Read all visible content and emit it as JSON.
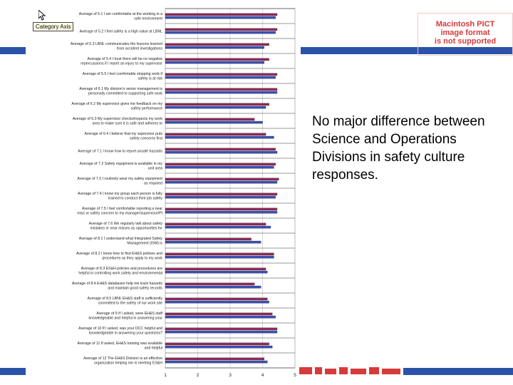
{
  "slide": {
    "callout_text": "No major difference between Science and Operations Divisions in safety culture responses.",
    "pict_notice": {
      "line1": "Macintosh PICT",
      "line2": "image format",
      "line3": "is not supported"
    },
    "tooltip": "Category Axis",
    "colors": {
      "band": "#2a52a8",
      "series_a": "#8e2a5a",
      "series_b": "#3a4fb5",
      "grid": "#c8c8c8",
      "pict_text": "#d63a3a"
    }
  },
  "chart_data": {
    "type": "bar",
    "orientation": "horizontal",
    "title": "",
    "xlabel": "",
    "ylabel": "",
    "xlim": [
      1,
      5
    ],
    "x_ticks": [
      "1",
      "2",
      "3",
      "4",
      "5"
    ],
    "grid": true,
    "legend": "none",
    "categories": [
      "Average of 5.1 I am comfortable at the working in a safe environment",
      "Average of 5.2 I feel safety is a high value at LBNL",
      "Average of 5.3 LBNL communicates the lessons learned from accident investigations",
      "Average of 5.4 I trust there will be no negative repercussions if I report an injury to my supervisor",
      "Average of 5.5 I feel comfortable stopping work if safety is at risk",
      "Average of 6.1 My division's senior management is personally committed to supporting safe work practices",
      "Average of 6.2 My supervisor gives me feedback on my safety performance",
      "Average of 6.3 My supervisor checks/inspects my work area to make sure it is safe and adheres to environmental",
      "Average of 6.4 I believe that my supervisor puts safety concerns first",
      "Average of 7.1 I know how to report unsafe hazards",
      "Average of 7.2 Safety equipment is available in my unit area",
      "Average of 7.3 I routinely wear my safety equipment as required",
      "Average of 7.4 I know my group each person is fully trained to conduct their job safely",
      "Average of 7.5 I feel comfortable reporting a near miss or safety concern to my manager/supervisor/PI",
      "Average of 7.6 We regularly talk about safety mistakes or near misses as opportunities for learning, not blame",
      "Average of 8.1 I understand what Integrated Safety Management (ISM) is",
      "Average of 8.2 I know how to find EH&S policies and procedures as they apply to my work",
      "Average of 8.3 ES&H policies and procedures are helpful in controlling work safety and environmental hazards",
      "Average of 8.4 EH&S databases help me track hazards and maintain good safety records",
      "Average of 8.5 LBNL EH&S staff is sufficiently committed to the safety of our work site",
      "Average of 9 If I asked, were EH&S staff knowledgeable and helpful in answering your questions?",
      "Average of 10 If I asked, was your DCC helpful and knowledgeable in answering your questions?",
      "Average of 11 If asked, EH&S training was available and helpful",
      "Average of 12 The EH&S Division is an effective organization helping me in meeting ES&H responsibilities"
    ],
    "series": [
      {
        "values": [
          4.45,
          4.45,
          4.2,
          4.2,
          4.45,
          4.45,
          4.2,
          3.75,
          4.1,
          4.4,
          4.4,
          4.5,
          4.45,
          4.45,
          4.1,
          3.65,
          4.35,
          4.1,
          3.75,
          4.15,
          4.3,
          4.45,
          4.2,
          4.05
        ]
      },
      {
        "values": [
          4.4,
          4.4,
          4.05,
          4.05,
          4.4,
          4.45,
          4.1,
          4.0,
          4.35,
          4.45,
          4.35,
          4.45,
          4.4,
          4.45,
          4.25,
          3.95,
          4.35,
          4.15,
          3.95,
          4.2,
          4.4,
          4.45,
          4.3,
          4.15
        ]
      }
    ]
  }
}
